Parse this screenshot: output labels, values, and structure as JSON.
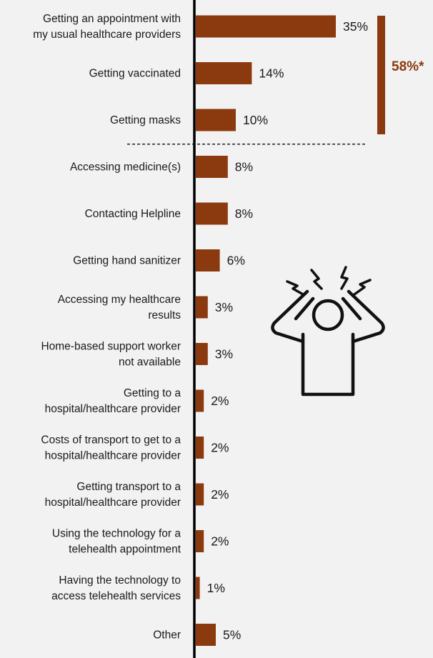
{
  "chart_data": {
    "type": "bar",
    "orientation": "horizontal",
    "title": "",
    "xlabel": "",
    "ylabel": "",
    "xlim": [
      0,
      35
    ],
    "grid": false,
    "bar_color": "#8b3a0f",
    "categories": [
      [
        "Getting an appointment with",
        "my usual healthcare providers"
      ],
      [
        "Getting vaccinated"
      ],
      [
        "Getting masks"
      ],
      [
        "Accessing medicine(s)"
      ],
      [
        "Contacting Helpline"
      ],
      [
        "Getting hand sanitizer"
      ],
      [
        "Accessing my healthcare",
        "results"
      ],
      [
        "Home-based support worker",
        "not available"
      ],
      [
        "Getting to a",
        "hospital/healthcare provider"
      ],
      [
        "Costs of transport to get to a",
        "hospital/healthcare provider"
      ],
      [
        "Getting transport to a",
        "hospital/healthcare provider"
      ],
      [
        "Using the technology for a",
        "telehealth appointment"
      ],
      [
        "Having the technology to",
        "access telehealth services"
      ],
      [
        "Other"
      ]
    ],
    "values": [
      35,
      14,
      10,
      8,
      8,
      6,
      3,
      3,
      2,
      2,
      2,
      2,
      1,
      5
    ],
    "value_labels": [
      "35%",
      "14%",
      "10%",
      "8%",
      "8%",
      "6%",
      "3%",
      "3%",
      "2%",
      "2%",
      "2%",
      "2%",
      "1%",
      "5%"
    ],
    "annotations": [
      {
        "type": "bracket",
        "covers_categories": [
          0,
          1,
          2
        ],
        "text": "58%*",
        "color": "#8b3a0f"
      },
      {
        "type": "dashed-separator",
        "after_category_index": 2
      }
    ],
    "decorative_icon": "stressed-person-icon"
  }
}
